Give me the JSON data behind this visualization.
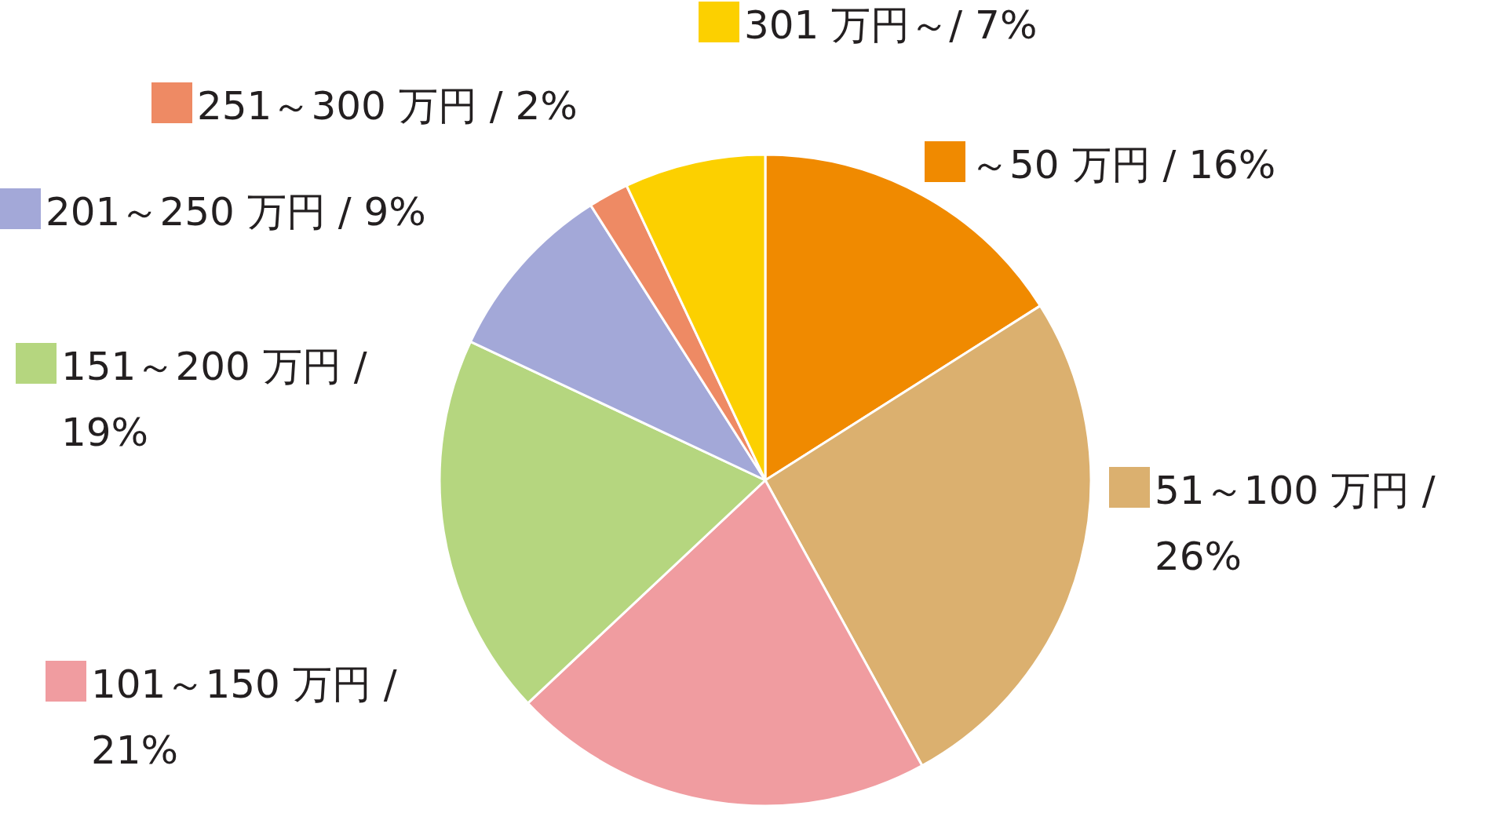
{
  "chart_data": {
    "type": "pie",
    "categories": [
      "～50 万円 / 16%",
      "51～100 万円 / 26%",
      "101～150 万円 / 21%",
      "151～200 万円 / 19%",
      "201～250 万円 / 9%",
      "251～300 万円 / 2%",
      "301 万円～/ 7%"
    ],
    "values": [
      16,
      26,
      21,
      19,
      9,
      2,
      7
    ],
    "colors": [
      "#f08a00",
      "#dbb06f",
      "#f09ca0",
      "#b5d67f",
      "#a3a8d8",
      "#ee8a64",
      "#fcd000"
    ],
    "legend": "left"
  }
}
